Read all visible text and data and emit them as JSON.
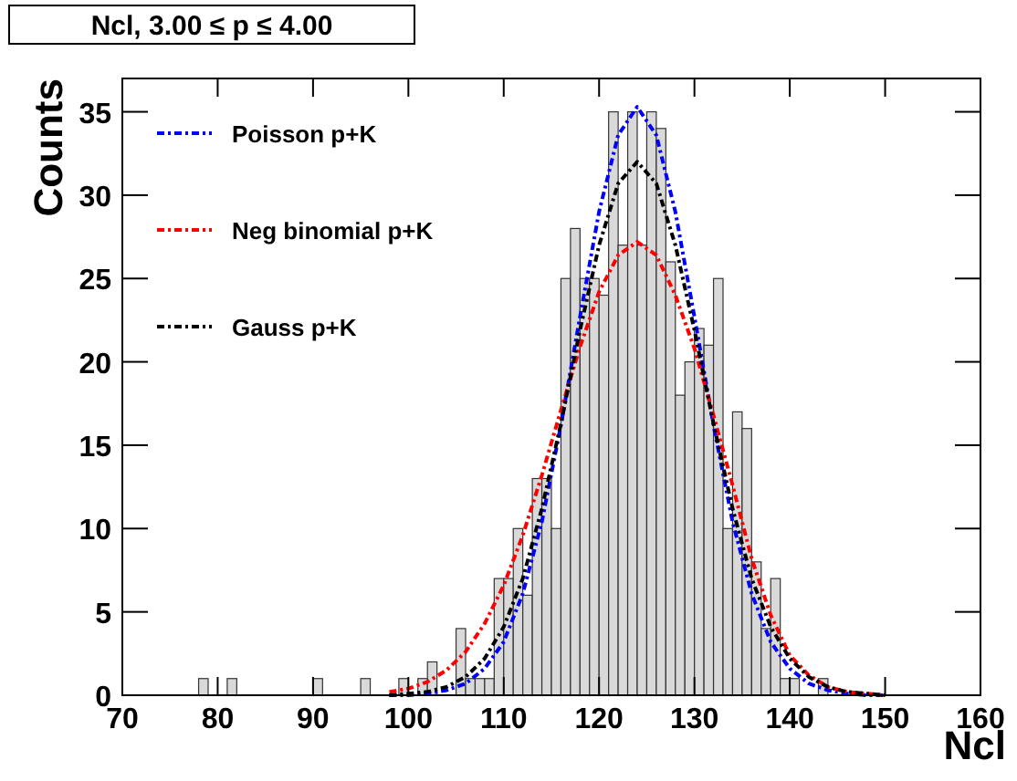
{
  "chart_data": {
    "type": "histogram",
    "title": "Ncl, 3.00 ≤ p ≤ 4.00",
    "xlabel": "Ncl",
    "ylabel": "Counts",
    "bins": [
      70,
      71,
      72,
      73,
      74,
      75,
      76,
      77,
      78,
      79,
      80,
      81,
      82,
      83,
      84,
      85,
      86,
      87,
      88,
      89,
      90,
      91,
      92,
      93,
      94,
      95,
      96,
      97,
      98,
      99,
      100,
      101,
      102,
      103,
      104,
      105,
      106,
      107,
      108,
      109,
      110,
      111,
      112,
      113,
      114,
      115,
      116,
      117,
      118,
      119,
      120,
      121,
      122,
      123,
      124,
      125,
      126,
      127,
      128,
      129,
      130,
      131,
      132,
      133,
      134,
      135,
      136,
      137,
      138,
      139,
      140,
      141,
      142,
      143,
      144,
      145,
      146,
      147,
      148,
      149,
      150,
      151,
      152,
      153,
      154,
      155,
      156,
      157,
      158,
      159,
      160
    ],
    "values": [
      0,
      0,
      0,
      0,
      0,
      0,
      0,
      0,
      1,
      0,
      0,
      1,
      0,
      0,
      0,
      0,
      0,
      0,
      0,
      0,
      1,
      0,
      0,
      0,
      0,
      1,
      0,
      0,
      0,
      1,
      0,
      1,
      2,
      0,
      0,
      4,
      1,
      1,
      1,
      7,
      7,
      10,
      6,
      13,
      13,
      10,
      25,
      28,
      25,
      25,
      24,
      35,
      27,
      35,
      27,
      35,
      34,
      26,
      18,
      20,
      22,
      21,
      25,
      10,
      17,
      16,
      8,
      4,
      7,
      1,
      1,
      0,
      0,
      1,
      0,
      0,
      0,
      0,
      0,
      0,
      0,
      0,
      0,
      0,
      0,
      0,
      0,
      0,
      0,
      0
    ],
    "color": "#d9d9d9",
    "series": [
      {
        "name": "Poisson p+K",
        "type": "line",
        "color": "#0000ff",
        "x": [
          98,
          100,
          102,
          104,
          106,
          108,
          110,
          112,
          114,
          116,
          118,
          120,
          122,
          124,
          126,
          128,
          130,
          132,
          134,
          136,
          138,
          140,
          142,
          144,
          146,
          148,
          150
        ],
        "values": [
          0,
          0,
          0.1,
          0.3,
          0.7,
          1.6,
          3.2,
          6.1,
          10.4,
          16.2,
          22.7,
          29,
          33.6,
          35.3,
          33.6,
          29,
          22.7,
          16.2,
          10.4,
          6.1,
          3.2,
          1.6,
          0.7,
          0.3,
          0.1,
          0,
          0
        ]
      },
      {
        "name": "Neg binomial p+K",
        "type": "line",
        "color": "#ff0000",
        "x": [
          98,
          100,
          102,
          104,
          106,
          108,
          110,
          112,
          114,
          116,
          118,
          120,
          122,
          124,
          126,
          128,
          130,
          132,
          134,
          136,
          138,
          140,
          142,
          144,
          146,
          148,
          150
        ],
        "values": [
          0.2,
          0.4,
          0.8,
          1.5,
          2.6,
          4.3,
          6.6,
          9.6,
          13.2,
          17.1,
          20.9,
          24.2,
          26.4,
          27.2,
          26.4,
          24,
          20.8,
          16.8,
          12.6,
          8.2,
          4.8,
          2.4,
          1.2,
          0.5,
          0.2,
          0.1,
          0
        ]
      },
      {
        "name": "Gauss p+K",
        "type": "line",
        "color": "#000000",
        "x": [
          98,
          100,
          102,
          104,
          106,
          108,
          110,
          112,
          114,
          116,
          118,
          120,
          122,
          124,
          126,
          128,
          130,
          132,
          134,
          136,
          138,
          140,
          142,
          144,
          146,
          148,
          150
        ],
        "values": [
          0,
          0.1,
          0.2,
          0.5,
          1.1,
          2.2,
          4.1,
          7,
          11.2,
          16.3,
          21.9,
          27,
          30.7,
          32,
          30.7,
          27,
          21.9,
          16.3,
          11.2,
          7,
          4.1,
          2.2,
          1.1,
          0.5,
          0.2,
          0.1,
          0
        ]
      }
    ],
    "line_style": "dashed",
    "xlim": [
      70,
      160
    ],
    "xticks": [
      70,
      80,
      90,
      100,
      110,
      120,
      130,
      140,
      150,
      160
    ],
    "ylim": [
      0,
      37
    ],
    "yticks": [
      0,
      5,
      10,
      15,
      20,
      25,
      30,
      35
    ],
    "legend": "top left",
    "grid": false
  }
}
